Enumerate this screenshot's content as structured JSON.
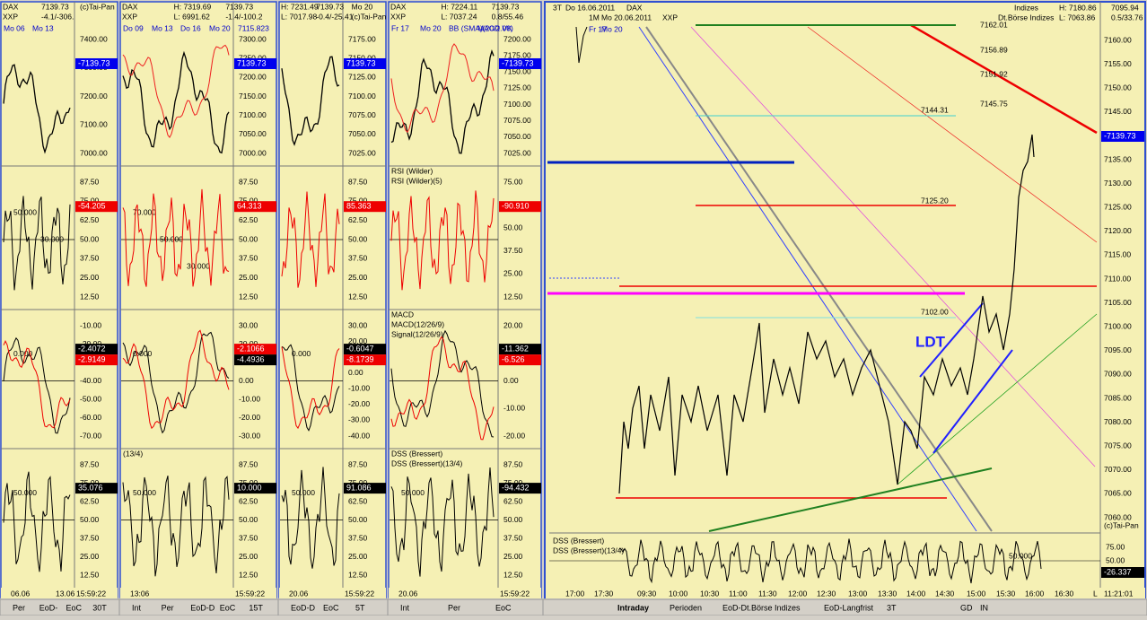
{
  "panels": [
    {
      "header": [
        "DAX",
        "XXP",
        "7139.73",
        "-4.1/-306.",
        "(c)Tai-Pan"
      ],
      "subpanels": [
        {
          "titles": [
            "Mo 06",
            "Mo 13"
          ],
          "labels": [
            "7400.00",
            "7300.00",
            "7200.00",
            "7100.00",
            "7000.00"
          ],
          "badges": [
            {
              "text": "-7139.73",
              "color": "#0000ee"
            }
          ],
          "notes": []
        },
        {
          "titles": [],
          "labels": [
            "87.50",
            "75.00",
            "62.50",
            "50.00",
            "37.50",
            "25.00",
            "12.50"
          ],
          "badges": [
            {
              "text": "-54.205",
              "color": "#ee0000"
            }
          ],
          "notes": [
            "50.000",
            "30.000"
          ]
        },
        {
          "titles": [],
          "labels": [
            "-10.00",
            "-20.00",
            "-30.00",
            "-40.00",
            "-50.00",
            "-60.00",
            "-70.00"
          ],
          "badges": [
            {
              "text": "-2.4072",
              "color": "#000000"
            },
            {
              "text": "-2.9149",
              "color": "#ee0000"
            }
          ],
          "notes": [
            "0.000"
          ]
        },
        {
          "titles": [],
          "labels": [
            "87.50",
            "75.00",
            "62.50",
            "50.00",
            "37.50",
            "25.00",
            "12.50"
          ],
          "badges": [
            {
              "text": "35.076",
              "color": "#000000"
            }
          ],
          "notes": [
            "50.000"
          ]
        }
      ],
      "times": [
        "06.06",
        "13.06",
        "15:59:22"
      ],
      "tabs": [
        "Per",
        "EoD-",
        "EoC",
        "30T"
      ]
    },
    {
      "header": [
        "DAX",
        "XXP",
        "H: 7319.69",
        "L: 6991.62",
        "7139.73",
        "-1.4/-100.2"
      ],
      "subpanels": [
        {
          "titles": [
            "Do 09",
            "Mo 13",
            "Do 16",
            "Mo 20",
            "7115.823"
          ],
          "labels": [
            "7300.00",
            "7250.00",
            "7200.00",
            "7150.00",
            "7100.00",
            "7050.00",
            "7000.00"
          ],
          "badges": [
            {
              "text": "7139.73",
              "color": "#0000ee"
            }
          ],
          "notes": []
        },
        {
          "titles": [],
          "labels": [
            "87.50",
            "75.00",
            "62.50",
            "50.00",
            "37.50",
            "25.00",
            "12.50"
          ],
          "badges": [
            {
              "text": "64.313",
              "color": "#ee0000"
            }
          ],
          "notes": [
            "70.000",
            "50.000",
            "30.000"
          ]
        },
        {
          "titles": [],
          "labels": [
            "30.00",
            "20.00",
            "10.00",
            "0.00",
            "-10.00",
            "-20.00",
            "-30.00"
          ],
          "badges": [
            {
              "text": "-2.1066",
              "color": "#ee0000"
            },
            {
              "text": "-4.4936",
              "color": "#000000"
            }
          ],
          "notes": [
            "0.000"
          ]
        },
        {
          "titles": [
            "(13/4)"
          ],
          "labels": [
            "87.50",
            "75.00",
            "62.50",
            "50.00",
            "37.50",
            "25.00",
            "12.50"
          ],
          "badges": [
            {
              "text": "10.000",
              "color": "#000000"
            }
          ],
          "notes": [
            "50.000"
          ]
        }
      ],
      "times": [
        "13:06",
        "15:59:22"
      ],
      "tabs": [
        "Int",
        "Per",
        "EoD-D",
        "EoC",
        "15T"
      ]
    },
    {
      "header": [
        "H: 7231.49",
        "L: 7017.98",
        "7139.73",
        "-0.4/-25.41",
        "Mo 20",
        "(c)Tai-Pan"
      ],
      "subpanels": [
        {
          "titles": [],
          "labels": [
            "7175.00",
            "7150.00",
            "7125.00",
            "7100.00",
            "7075.00",
            "7050.00",
            "7025.00"
          ],
          "badges": [
            {
              "text": "7139.73",
              "color": "#0000ee"
            }
          ],
          "notes": []
        },
        {
          "titles": [],
          "labels": [
            "87.50",
            "75.00",
            "62.50",
            "50.00",
            "37.50",
            "25.00",
            "12.50"
          ],
          "badges": [
            {
              "text": "85.363",
              "color": "#ee0000"
            }
          ],
          "notes": []
        },
        {
          "titles": [],
          "labels": [
            "30.00",
            "20.00",
            "10.00",
            "0.00",
            "-10.00",
            "-20.00",
            "-30.00",
            "-40.00"
          ],
          "badges": [
            {
              "text": "-0.6047",
              "color": "#000000"
            },
            {
              "text": "-8.1739",
              "color": "#ee0000"
            }
          ],
          "notes": [
            "0.000"
          ]
        },
        {
          "titles": [],
          "labels": [
            "87.50",
            "75.00",
            "62.50",
            "50.00",
            "37.50",
            "25.00",
            "12.50"
          ],
          "badges": [
            {
              "text": "91.086",
              "color": "#000000"
            }
          ],
          "notes": [
            "50.000"
          ]
        }
      ],
      "times": [
        "20.06",
        "15:59:22"
      ],
      "tabs": [
        "EoD-D",
        "EoC",
        "5T"
      ]
    },
    {
      "header": [
        "DAX",
        "XXP",
        "H: 7224.11",
        "L: 7037.24",
        "7139.73",
        "0.8/55.46"
      ],
      "subpanels": [
        {
          "titles": [
            "Fr 17",
            "Mo 20",
            "BB (SMA)(20/2.00)",
            "MACD VK"
          ],
          "labels": [
            "7200.00",
            "7175.00",
            "7150.00",
            "7125.00",
            "7100.00",
            "7075.00",
            "7050.00",
            "7025.00"
          ],
          "badges": [
            {
              "text": "-7139.73",
              "color": "#0000ee"
            }
          ],
          "notes": []
        },
        {
          "titles": [
            "RSI (Wilder)",
            "RSI (Wilder)(5)"
          ],
          "labels": [
            "75.00",
            "62.50",
            "50.00",
            "37.50",
            "25.00",
            "12.50"
          ],
          "badges": [
            {
              "text": "-90.910",
              "color": "#ee0000"
            }
          ],
          "notes": []
        },
        {
          "titles": [
            "MACD",
            "MACD(12/26/9)",
            "Signal(12/26/9)"
          ],
          "labels": [
            "20.00",
            "10.00",
            "0.00",
            "-10.00",
            "-20.00"
          ],
          "badges": [
            {
              "text": "-11.362",
              "color": "#000000"
            },
            {
              "text": "-6.526",
              "color": "#ee0000"
            }
          ],
          "notes": []
        },
        {
          "titles": [
            "DSS (Bressert)",
            "DSS (Bressert)(13/4)"
          ],
          "labels": [
            "87.50",
            "75.00",
            "62.50",
            "50.00",
            "37.50",
            "25.00",
            "12.50"
          ],
          "badges": [
            {
              "text": "-94.432",
              "color": "#000000"
            }
          ],
          "notes": [
            "50.000"
          ]
        }
      ],
      "times": [
        "20.06",
        "15:59:22"
      ],
      "tabs": [
        "Int",
        "Per",
        "EoC"
      ]
    }
  ],
  "main": {
    "header": [
      "3T",
      "Do 16.06.2011",
      "DAX",
      "1M",
      "Mo 20.06.2011",
      "XXP",
      "Fr 17",
      "Mo 20"
    ],
    "right_header": [
      "Indizes",
      "Dt.Börse Indizes",
      "H: 7180.86",
      "L: 7063.86",
      "7095.94",
      "0.5/33.76"
    ],
    "labels": [
      "7160.00",
      "7155.00",
      "7150.00",
      "7145.00",
      "7140.00",
      "7135.00",
      "7130.00",
      "7125.00",
      "7120.00",
      "7115.00",
      "7110.00",
      "7105.00",
      "7100.00",
      "7095.00",
      "7090.00",
      "7085.00",
      "7080.00",
      "7075.00",
      "7070.00",
      "7065.00",
      "7060.00"
    ],
    "badge": "-7139.73",
    "copyright": "(c)Tai-Pan",
    "levels": [
      "7162.01",
      "7156.89",
      "7151.92",
      "7145.75",
      "7144.31",
      "7125.20",
      "7102.00"
    ],
    "pattern": "LDT",
    "dss_titles": [
      "DSS (Bressert)",
      "DSS (Bressert)(13/4)"
    ],
    "dss_labels": [
      "75.00",
      "50.00",
      "25.00"
    ],
    "dss_note": "50.000",
    "dss_badge": "-26.337",
    "times": [
      "17:00",
      "17:30",
      "09:30",
      "10:00",
      "10:30",
      "11:00",
      "11:30",
      "12:00",
      "12:30",
      "13:00",
      "13:30",
      "14:00",
      "14:30",
      "15:00",
      "15:30",
      "16:00",
      "16:30"
    ],
    "clock": "11:21:01",
    "end": "L",
    "tabs": [
      "Intraday",
      "Perioden",
      "EoD-Dt.Börse Indizes",
      "EoD-Langfrist",
      "3T",
      "GD",
      "IN"
    ]
  }
}
